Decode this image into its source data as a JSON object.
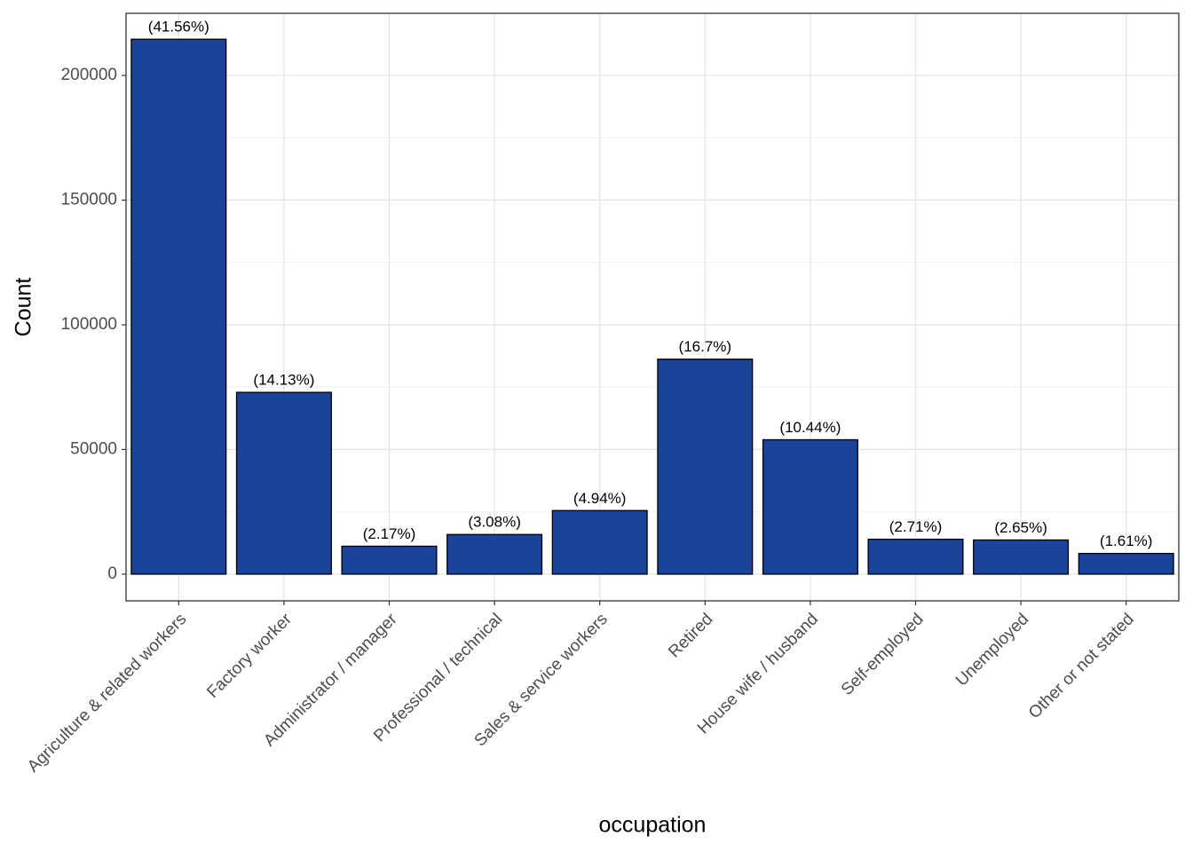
{
  "chart_data": {
    "type": "bar",
    "x_label": "occupation",
    "y_label": "Count",
    "categories": [
      "Agriculture & related workers",
      "Factory worker",
      "Administrator / manager",
      "Professional / technical",
      "Sales & service workers",
      "Retired",
      "House wife / husband",
      "Self-employed",
      "Unemployed",
      "Other or not stated"
    ],
    "values": [
      214500,
      72900,
      11200,
      15900,
      25500,
      86200,
      53900,
      14000,
      13700,
      8300
    ],
    "bar_labels": [
      "(41.56%)",
      "(14.13%)",
      "(2.17%)",
      "(3.08%)",
      "(4.94%)",
      "(16.7%)",
      "(10.44%)",
      "(2.71%)",
      "(2.65%)",
      "(1.61%)"
    ],
    "color": "#1a4399",
    "ylim": [
      -10700,
      224900
    ],
    "yticks": [
      0,
      50000,
      100000,
      150000,
      200000
    ],
    "minor_yticks": [
      25000,
      75000,
      125000,
      175000
    ],
    "grid": true
  }
}
